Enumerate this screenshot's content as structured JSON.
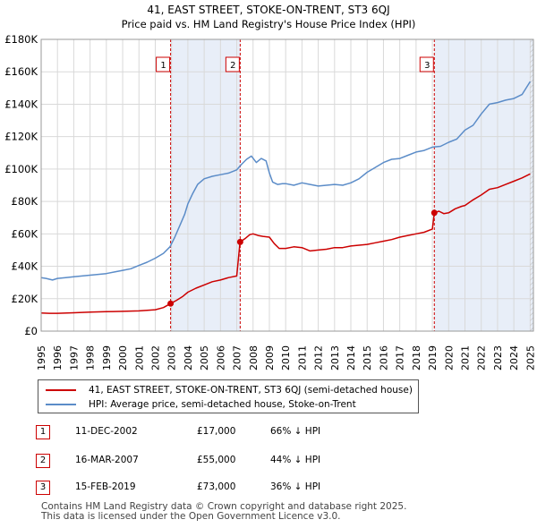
{
  "chart_data": {
    "type": "line",
    "title": "41, EAST STREET, STOKE-ON-TRENT, ST3 6QJ",
    "subtitle": "Price paid vs. HM Land Registry's House Price Index (HPI)",
    "ylim": [
      0,
      180000
    ],
    "xlim": [
      1995,
      2025.2
    ],
    "y_ticks": [
      0,
      20000,
      40000,
      60000,
      80000,
      100000,
      120000,
      140000,
      160000,
      180000
    ],
    "y_tick_labels": [
      "£0",
      "£20K",
      "£40K",
      "£60K",
      "£80K",
      "£100K",
      "£120K",
      "£140K",
      "£160K",
      "£180K"
    ],
    "x_ticks": [
      1995,
      1996,
      1997,
      1998,
      1999,
      2000,
      2001,
      2002,
      2003,
      2004,
      2005,
      2006,
      2007,
      2008,
      2009,
      2010,
      2011,
      2012,
      2013,
      2014,
      2015,
      2016,
      2017,
      2018,
      2019,
      2020,
      2021,
      2022,
      2023,
      2024,
      2025
    ],
    "x_tick_labels": [
      "1995",
      "1996",
      "1997",
      "1998",
      "1999",
      "2000",
      "2001",
      "2002",
      "2003",
      "2004",
      "2005",
      "2006",
      "2007",
      "2008",
      "2009",
      "2010",
      "2011",
      "2012",
      "2013",
      "2014",
      "2015",
      "2016",
      "2017",
      "2018",
      "2019",
      "2020",
      "2021",
      "2022",
      "2023",
      "2024",
      "2025"
    ],
    "series": [
      {
        "name": "41, EAST STREET, STOKE-ON-TRENT, ST3 6QJ (semi-detached house)",
        "color": "#cc0000",
        "x": [
          1995.0,
          1995.5,
          1996.0,
          1997.0,
          1998.0,
          1999.0,
          2000.0,
          2001.0,
          2001.5,
          2002.0,
          2002.5,
          2002.94,
          2003.3,
          2003.7,
          2004.0,
          2004.5,
          2005.0,
          2005.5,
          2006.0,
          2006.5,
          2007.0,
          2007.2,
          2007.5,
          2007.8,
          2008.0,
          2008.3,
          2008.6,
          2009.0,
          2009.3,
          2009.6,
          2010.0,
          2010.5,
          2011.0,
          2011.5,
          2012.0,
          2012.5,
          2013.0,
          2013.5,
          2014.0,
          2014.5,
          2015.0,
          2015.5,
          2016.0,
          2016.5,
          2017.0,
          2017.5,
          2018.0,
          2018.5,
          2019.0,
          2019.12,
          2019.4,
          2019.7,
          2020.0,
          2020.4,
          2020.8,
          2021.0,
          2021.5,
          2022.0,
          2022.5,
          2023.0,
          2023.5,
          2024.0,
          2024.5,
          2025.0
        ],
        "y": [
          11200,
          11000,
          11000,
          11300,
          11700,
          12000,
          12200,
          12500,
          12800,
          13200,
          14500,
          17000,
          19000,
          21500,
          24000,
          26500,
          28500,
          30500,
          31500,
          33000,
          34000,
          55000,
          57000,
          59500,
          60000,
          59000,
          58500,
          58000,
          54000,
          51000,
          51000,
          52000,
          51500,
          49500,
          50000,
          50500,
          51500,
          51500,
          52500,
          53000,
          53500,
          54500,
          55500,
          56500,
          58000,
          59000,
          60000,
          61000,
          63000,
          73000,
          74000,
          72500,
          73000,
          75500,
          77000,
          77500,
          81000,
          84000,
          87500,
          88500,
          90500,
          92500,
          94500,
          97000
        ]
      },
      {
        "name": "HPI: Average price, semi-detached house, Stoke-on-Trent",
        "color": "#5b8cc8",
        "x": [
          1995.0,
          1995.3,
          1995.7,
          1996.0,
          1996.5,
          1997.0,
          1997.5,
          1998.0,
          1998.5,
          1999.0,
          1999.5,
          2000.0,
          2000.5,
          2001.0,
          2001.5,
          2002.0,
          2002.5,
          2002.9,
          2003.2,
          2003.5,
          2003.8,
          2004.0,
          2004.3,
          2004.6,
          2005.0,
          2005.5,
          2006.0,
          2006.5,
          2007.0,
          2007.3,
          2007.6,
          2007.9,
          2008.2,
          2008.5,
          2008.8,
          2009.0,
          2009.2,
          2009.5,
          2009.8,
          2010.0,
          2010.5,
          2011.0,
          2011.5,
          2012.0,
          2012.5,
          2013.0,
          2013.5,
          2014.0,
          2014.5,
          2015.0,
          2015.5,
          2016.0,
          2016.5,
          2017.0,
          2017.5,
          2018.0,
          2018.5,
          2019.0,
          2019.5,
          2020.0,
          2020.5,
          2021.0,
          2021.5,
          2022.0,
          2022.5,
          2023.0,
          2023.5,
          2024.0,
          2024.5,
          2025.0
        ],
        "y": [
          33000,
          32500,
          31500,
          32500,
          33000,
          33500,
          34000,
          34500,
          35000,
          35500,
          36500,
          37500,
          38500,
          40500,
          42500,
          45000,
          48000,
          52000,
          58000,
          65000,
          72000,
          78500,
          85000,
          90500,
          94000,
          95500,
          96500,
          97500,
          99500,
          103000,
          106000,
          108000,
          104000,
          106500,
          105000,
          97500,
          92000,
          90500,
          91000,
          91000,
          90000,
          91500,
          90500,
          89500,
          90000,
          90500,
          90000,
          91500,
          94000,
          98000,
          101000,
          104000,
          106000,
          106500,
          108500,
          110500,
          111500,
          113500,
          114000,
          116500,
          118500,
          124000,
          127000,
          134000,
          140000,
          141000,
          142500,
          143500,
          146000,
          154000
        ]
      }
    ],
    "annotations": [
      {
        "label": "1",
        "x": 2002.94,
        "y": 17000
      },
      {
        "label": "2",
        "x": 2007.21,
        "y": 55000
      },
      {
        "label": "3",
        "x": 2019.12,
        "y": 73000
      }
    ]
  },
  "legend": {
    "items": [
      {
        "label": "41, EAST STREET, STOKE-ON-TRENT, ST3 6QJ (semi-detached house)",
        "color": "#cc0000"
      },
      {
        "label": "HPI: Average price, semi-detached house, Stoke-on-Trent",
        "color": "#5b8cc8"
      }
    ]
  },
  "transactions": [
    {
      "label": "1",
      "date": "11-DEC-2002",
      "price": "£17,000",
      "hpi": "66% ↓ HPI"
    },
    {
      "label": "2",
      "date": "16-MAR-2007",
      "price": "£55,000",
      "hpi": "44% ↓ HPI"
    },
    {
      "label": "3",
      "date": "15-FEB-2019",
      "price": "£73,000",
      "hpi": "36% ↓ HPI"
    }
  ],
  "footer": {
    "line1": "Contains HM Land Registry data © Crown copyright and database right 2025.",
    "line2": "This data is licensed under the Open Government Licence v3.0."
  }
}
